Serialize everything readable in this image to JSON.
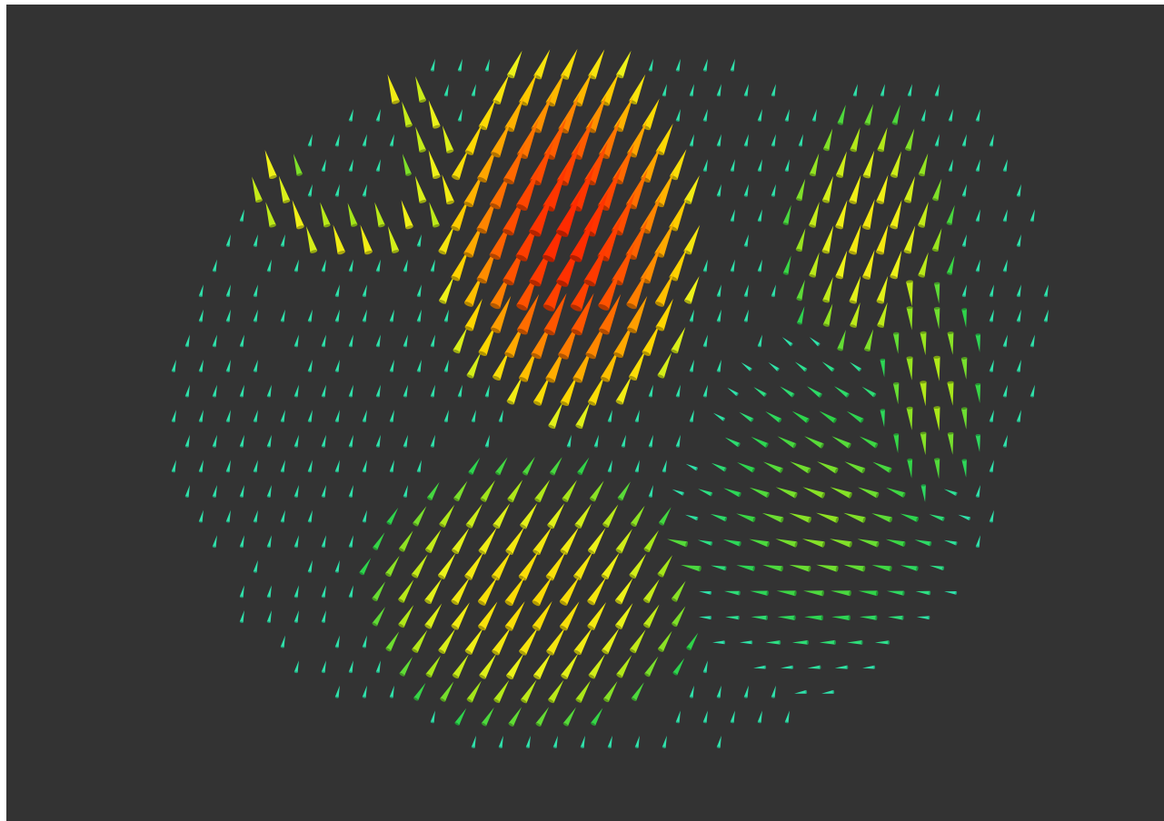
{
  "scene": {
    "kind": "3d-vector-field-glyphs",
    "glyph": "cone",
    "background_color": "#333333",
    "frame_color": "#ffffff",
    "colormap": {
      "name": "magnitude",
      "stops": [
        "#33e6e6",
        "#2ee08a",
        "#2ed44a",
        "#a6e61a",
        "#eef21a",
        "#ffd400",
        "#ffa000",
        "#ff5a00",
        "#ff2a00"
      ]
    },
    "regions": [
      {
        "name": "upper-left-arc",
        "strength": 0.55
      },
      {
        "name": "central-vortex",
        "strength": 1.0
      },
      {
        "name": "lower-central-lobe",
        "strength": 0.6
      },
      {
        "name": "right-vortex",
        "strength": 0.55
      },
      {
        "name": "lower-right-swirl",
        "strength": 0.35
      }
    ]
  }
}
